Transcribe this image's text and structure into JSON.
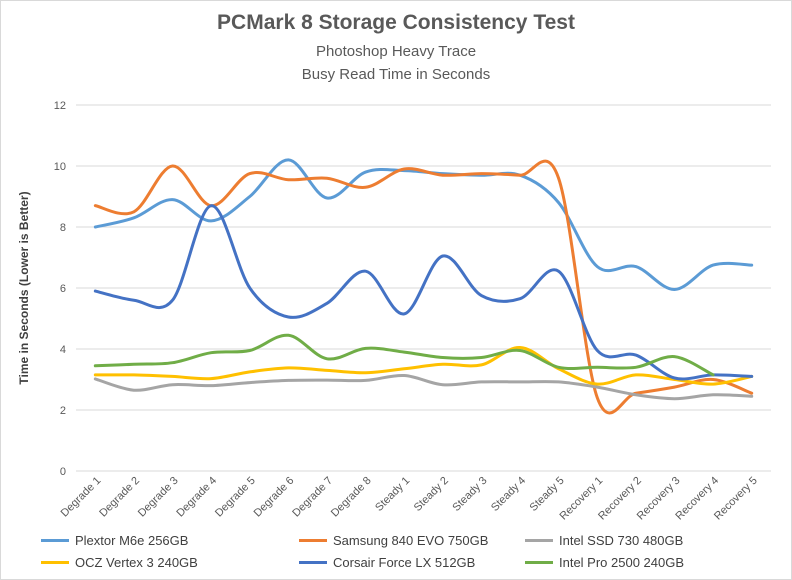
{
  "chart_data": {
    "type": "line",
    "title": "PCMark 8 Storage Consistency Test",
    "subtitle": [
      "Photoshop Heavy Trace",
      "Busy Read Time in Seconds"
    ],
    "xlabel": "",
    "ylabel": "Time in Seconds  (Lower is Better)",
    "ylim": [
      0,
      12
    ],
    "yticks": [
      "0",
      "2",
      "4",
      "6",
      "8",
      "10",
      "12"
    ],
    "grid": true,
    "legend_position": "bottom",
    "categories": [
      "Degrade 1",
      "Degrade 2",
      "Degrade 3",
      "Degrade 4",
      "Degrade 5",
      "Degrade 6",
      "Degrade 7",
      "Degrade 8",
      "Steady 1",
      "Steady 2",
      "Steady 3",
      "Steady 4",
      "Steady 5",
      "Recovery 1",
      "Recovery 2",
      "Recovery 3",
      "Recovery 4",
      "Recovery 5"
    ],
    "series": [
      {
        "name": "Plextor M6e 256GB",
        "color": "#5b9bd5",
        "values": [
          8.0,
          8.3,
          8.9,
          8.2,
          9.0,
          10.2,
          8.95,
          9.8,
          9.85,
          9.75,
          9.7,
          9.7,
          8.8,
          6.7,
          6.7,
          5.95,
          6.75,
          6.75
        ]
      },
      {
        "name": "Samsung 840 EVO 750GB",
        "color": "#ed7d31",
        "values": [
          8.7,
          8.5,
          10.0,
          8.7,
          9.75,
          9.55,
          9.6,
          9.3,
          9.9,
          9.7,
          9.75,
          9.7,
          9.6,
          2.4,
          2.55,
          2.75,
          3.0,
          2.55
        ]
      },
      {
        "name": "Intel SSD 730 480GB",
        "color": "#a5a5a5",
        "values": [
          3.02,
          2.65,
          2.83,
          2.8,
          2.9,
          2.97,
          2.98,
          2.97,
          3.13,
          2.83,
          2.92,
          2.92,
          2.92,
          2.75,
          2.5,
          2.37,
          2.5,
          2.45
        ]
      },
      {
        "name": "OCZ Vertex 3 240GB",
        "color": "#ffc000",
        "values": [
          3.15,
          3.15,
          3.1,
          3.03,
          3.25,
          3.38,
          3.3,
          3.22,
          3.35,
          3.5,
          3.48,
          4.05,
          3.35,
          2.85,
          3.15,
          3.0,
          2.85,
          3.1
        ]
      },
      {
        "name": "Corsair Force LX 512GB",
        "color": "#4472c4",
        "values": [
          5.9,
          5.6,
          5.6,
          8.7,
          6.0,
          5.05,
          5.5,
          6.55,
          5.15,
          7.05,
          5.75,
          5.65,
          6.55,
          3.95,
          3.8,
          3.05,
          3.15,
          3.1
        ]
      },
      {
        "name": "Intel Pro 2500 240GB",
        "color": "#70ad47",
        "values": [
          3.45,
          3.5,
          3.55,
          3.88,
          3.95,
          4.45,
          3.68,
          4.02,
          3.9,
          3.72,
          3.72,
          3.95,
          3.4,
          3.4,
          3.4,
          3.75,
          3.15,
          null
        ]
      }
    ]
  }
}
